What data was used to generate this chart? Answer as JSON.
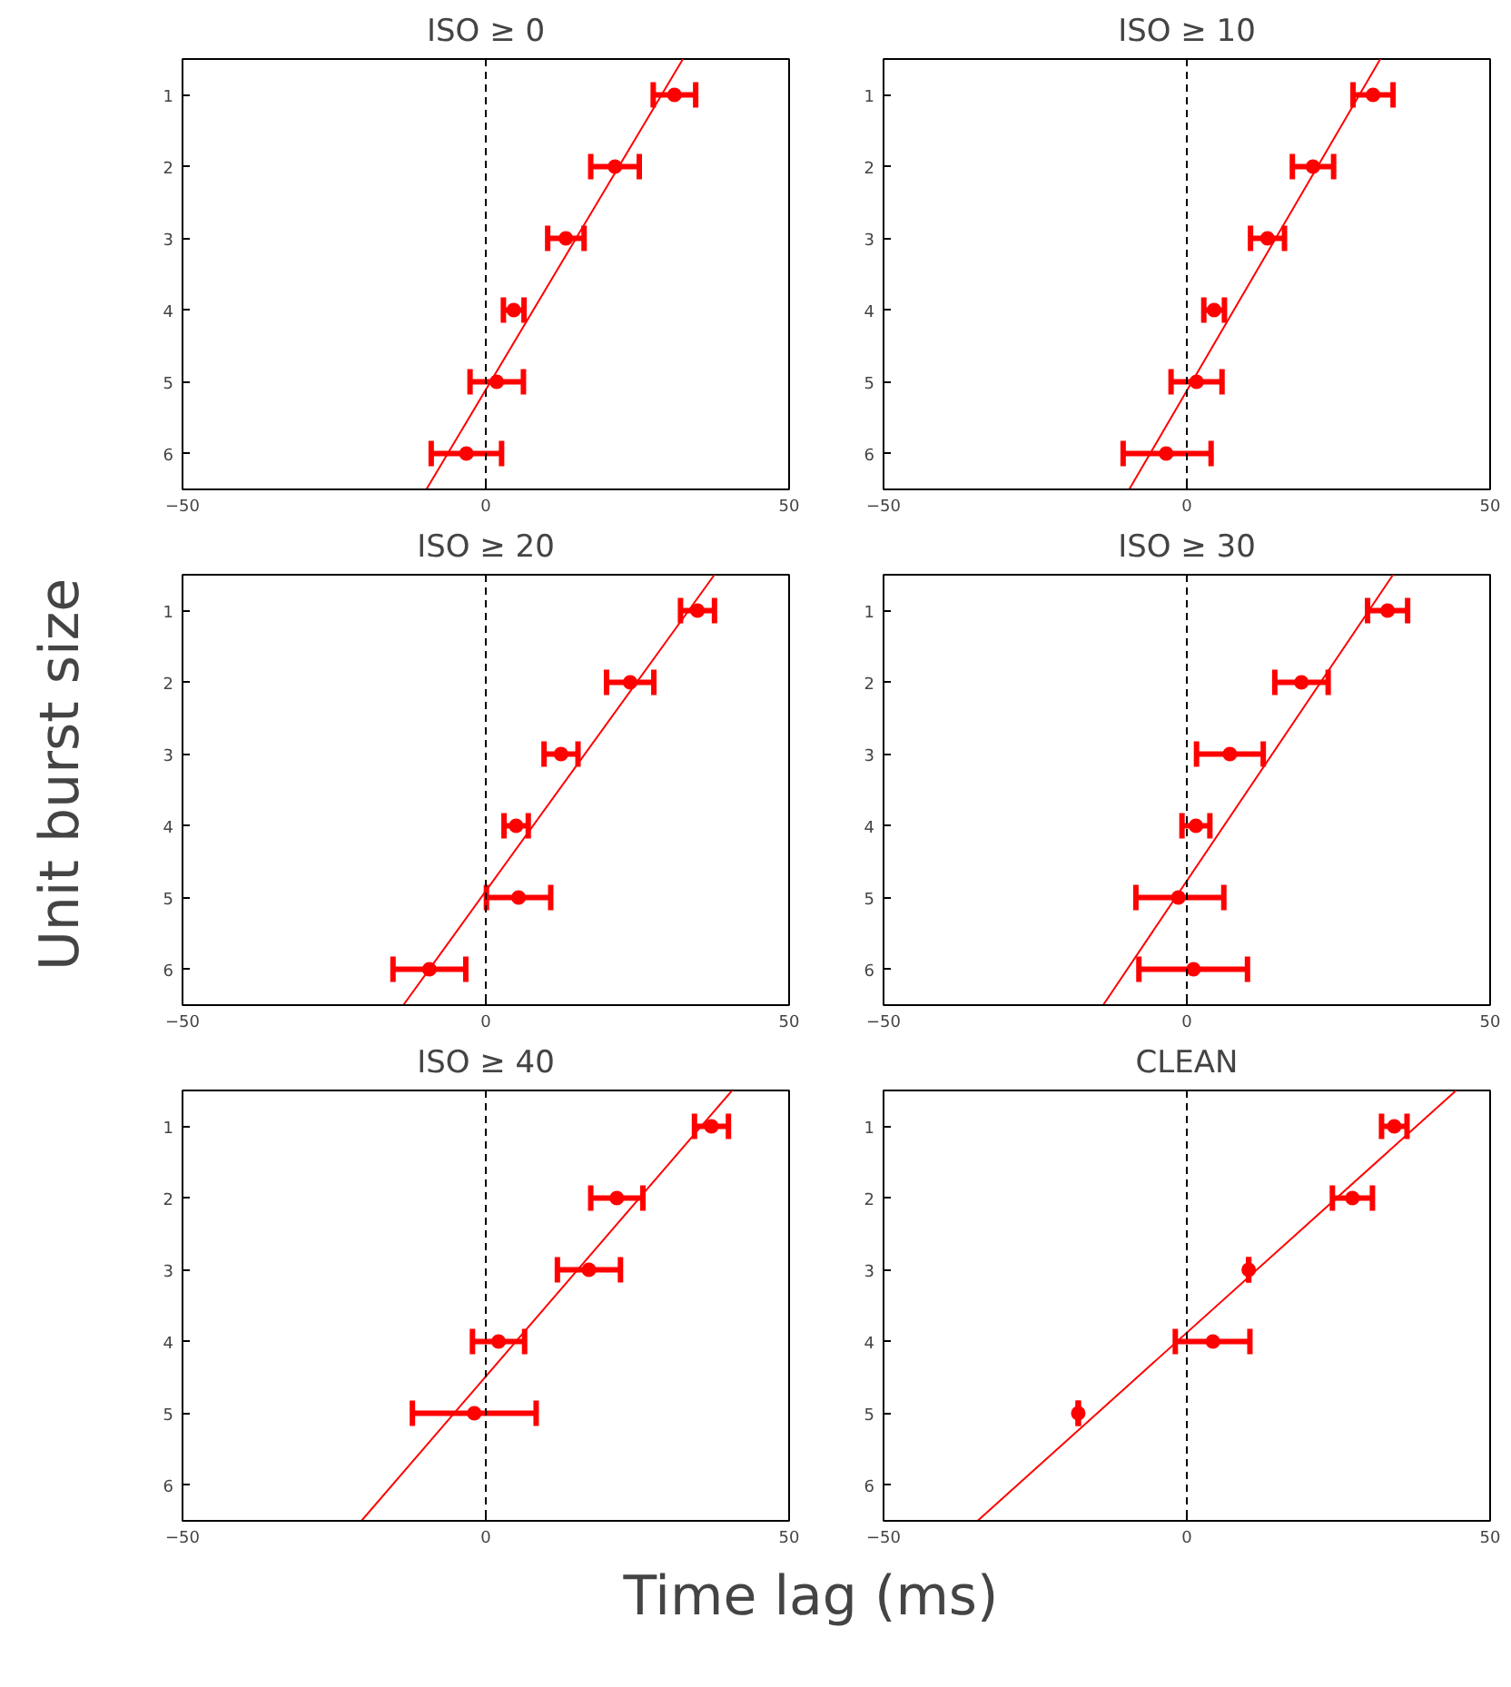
{
  "chart_data": [
    {
      "type": "scatter",
      "title": "ISO ≥ 0",
      "ylabel": "Unit burst size",
      "xlim": [
        -50,
        50
      ],
      "xticks": [
        -50,
        0,
        50
      ],
      "ylim": [
        6.5,
        0.5
      ],
      "yticks": [
        1,
        2,
        3,
        4,
        5,
        6
      ],
      "grid": false,
      "ref_lines": [
        {
          "axis": "x",
          "value": 0,
          "color": "#000000",
          "line_style": "dashed"
        }
      ],
      "series": [
        {
          "type": "scatter",
          "marker": "circle",
          "color": "#ff0000",
          "x": [
            31.1,
            21.3,
            13.2,
            4.6,
            1.8,
            -3.2
          ],
          "values": [
            1,
            2,
            3,
            4,
            5,
            6
          ],
          "xerrors": [
            3.5,
            4,
            3,
            1.7,
            4.4,
            5.8
          ]
        },
        {
          "type": "line",
          "marker": "none",
          "color": "#ff0000",
          "line_style": "solid",
          "x": [
            32.5,
            -9.8
          ],
          "values": [
            0.5,
            6.5
          ]
        }
      ]
    },
    {
      "type": "scatter",
      "title": "ISO ≥ 10",
      "xlim": [
        -50,
        50
      ],
      "xticks": [
        -50,
        0,
        50
      ],
      "ylim": [
        6.5,
        0.5
      ],
      "yticks": [
        1,
        2,
        3,
        4,
        5,
        6
      ],
      "grid": false,
      "ref_lines": [
        {
          "axis": "x",
          "value": 0,
          "color": "#000000",
          "line_style": "dashed"
        }
      ],
      "series": [
        {
          "type": "scatter",
          "marker": "circle",
          "color": "#ff0000",
          "x": [
            30.7,
            20.8,
            13.3,
            4.5,
            1.6,
            -3.4
          ],
          "values": [
            1,
            2,
            3,
            4,
            5,
            6
          ],
          "xerrors": [
            3.3,
            3.4,
            2.8,
            1.7,
            4.2,
            [
              -10.5,
              4
            ]
          ]
        },
        {
          "type": "line",
          "marker": "none",
          "color": "#ff0000",
          "line_style": "solid",
          "x": [
            31.9,
            -9.5
          ],
          "values": [
            0.5,
            6.5
          ]
        }
      ]
    },
    {
      "type": "scatter",
      "title": "ISO ≥ 20",
      "xlim": [
        -50,
        50
      ],
      "xticks": [
        -50,
        0,
        50
      ],
      "ylim": [
        6.5,
        0.5
      ],
      "yticks": [
        1,
        2,
        3,
        4,
        5,
        6
      ],
      "grid": false,
      "ref_lines": [
        {
          "axis": "x",
          "value": 0,
          "color": "#000000",
          "line_style": "dashed"
        }
      ],
      "series": [
        {
          "type": "scatter",
          "marker": "circle",
          "color": "#ff0000",
          "x": [
            34.9,
            23.8,
            12.4,
            5.0,
            5.4,
            -9.3
          ],
          "values": [
            1,
            2,
            3,
            4,
            5,
            6
          ],
          "xerrors": [
            2.8,
            3.9,
            2.8,
            2,
            5.3,
            6
          ]
        },
        {
          "type": "line",
          "marker": "none",
          "color": "#ff0000",
          "line_style": "solid",
          "x": [
            37.7,
            -13.6
          ],
          "values": [
            0.5,
            6.5
          ]
        }
      ]
    },
    {
      "type": "scatter",
      "title": "ISO ≥ 30",
      "xlim": [
        -50,
        50
      ],
      "xticks": [
        -50,
        0,
        50
      ],
      "ylim": [
        6.5,
        0.5
      ],
      "yticks": [
        1,
        2,
        3,
        4,
        5,
        6
      ],
      "grid": false,
      "ref_lines": [
        {
          "axis": "x",
          "value": 0,
          "color": "#000000",
          "line_style": "dashed"
        }
      ],
      "series": [
        {
          "type": "scatter",
          "marker": "circle",
          "color": "#ff0000",
          "x": [
            33.1,
            18.9,
            7.1,
            1.5,
            -1.4,
            1.1
          ],
          "values": [
            1,
            2,
            3,
            4,
            5,
            6
          ],
          "xerrors": [
            3.3,
            4.4,
            5.5,
            2.3,
            [
              -8.4,
              6.1
            ],
            [
              -7.9,
              10
            ]
          ]
        },
        {
          "type": "line",
          "marker": "none",
          "color": "#ff0000",
          "line_style": "solid",
          "x": [
            34,
            -13.8
          ],
          "values": [
            0.5,
            6.5
          ]
        }
      ]
    },
    {
      "type": "scatter",
      "title": "ISO ≥ 40",
      "xlabel": "Time lag (ms)",
      "xlim": [
        -50,
        50
      ],
      "xticks": [
        -50,
        0,
        50
      ],
      "ylim": [
        6.5,
        0.5
      ],
      "yticks": [
        1,
        2,
        3,
        4,
        5,
        6
      ],
      "grid": false,
      "ref_lines": [
        {
          "axis": "x",
          "value": 0,
          "color": "#000000",
          "line_style": "dashed"
        }
      ],
      "series": [
        {
          "type": "scatter",
          "marker": "circle",
          "color": "#ff0000",
          "x": [
            37.2,
            21.6,
            17.0,
            2.1,
            -1.9
          ],
          "values": [
            1,
            2,
            3,
            4,
            5
          ],
          "xerrors": [
            2.8,
            4.3,
            5.2,
            4.3,
            10.2
          ]
        },
        {
          "type": "line",
          "marker": "none",
          "color": "#ff0000",
          "line_style": "solid",
          "x": [
            40.6,
            -20.5
          ],
          "values": [
            0.5,
            6.5
          ]
        }
      ]
    },
    {
      "type": "scatter",
      "title": "CLEAN",
      "xlim": [
        -50,
        50
      ],
      "xticks": [
        -50,
        0,
        50
      ],
      "ylim": [
        6.5,
        0.5
      ],
      "yticks": [
        1,
        2,
        3,
        4,
        5,
        6
      ],
      "grid": false,
      "ref_lines": [
        {
          "axis": "x",
          "value": 0,
          "color": "#000000",
          "line_style": "dashed"
        }
      ],
      "series": [
        {
          "type": "scatter",
          "marker": "circle",
          "color": "#ff0000",
          "x": [
            34.2,
            27.3,
            10.2,
            4.3,
            -17.9
          ],
          "values": [
            1,
            2,
            3,
            4,
            5
          ],
          "xerrors": [
            2.1,
            3.3,
            0,
            [
              -1.9,
              10.4
            ],
            0
          ]
        },
        {
          "type": "line",
          "marker": "none",
          "color": "#ff0000",
          "line_style": "solid",
          "x": [
            44.4,
            -34.5
          ],
          "values": [
            0.5,
            6.5
          ]
        }
      ]
    }
  ]
}
